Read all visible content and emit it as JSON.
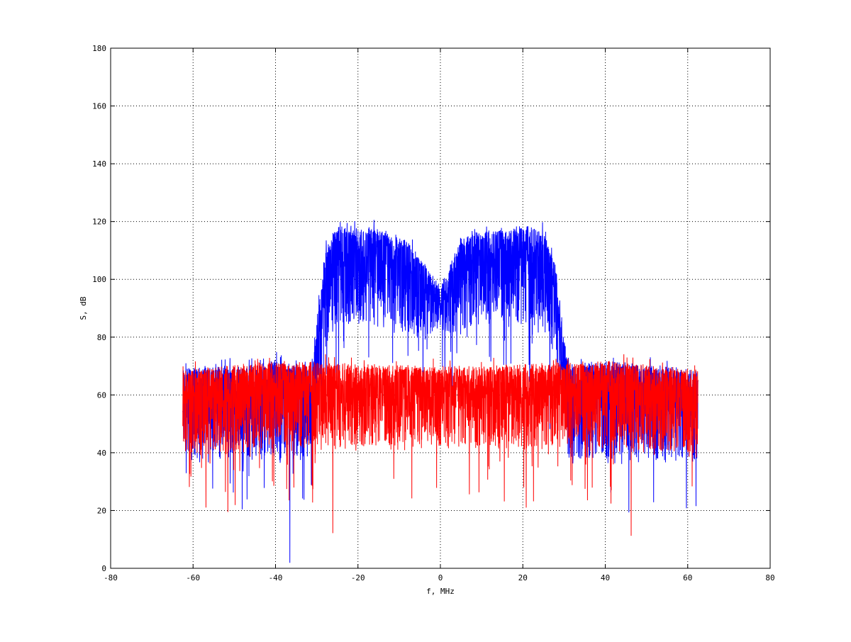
{
  "chart_data": {
    "type": "line",
    "title": "",
    "xlabel": "f, MHz",
    "ylabel": "S, dB",
    "xlim": [
      -80,
      80
    ],
    "ylim": [
      0,
      180
    ],
    "xticks": [
      "-80",
      "-60",
      "-40",
      "-20",
      "0",
      "20",
      "40",
      "60",
      "80"
    ],
    "yticks": [
      "0",
      "20",
      "40",
      "60",
      "80",
      "100",
      "120",
      "140",
      "160",
      "180"
    ],
    "grid": true,
    "frequency_range": [
      -62.5,
      62.5
    ],
    "series": [
      {
        "color": "#0000ff",
        "envelope_f": [
          -62.5,
          -45,
          -40,
          -35,
          -31,
          -30,
          -28,
          -25,
          -15,
          -8,
          -3,
          0,
          2,
          5,
          10,
          20,
          25,
          28,
          30,
          31,
          40,
          62.5
        ],
        "envelope_upper_db": [
          70,
          70,
          73,
          70,
          70,
          85,
          110,
          119,
          118,
          114,
          104,
          98,
          104,
          115,
          117,
          119,
          117,
          105,
          80,
          71,
          72,
          69
        ],
        "envelope_lower_db": [
          38,
          38,
          38,
          38,
          38,
          55,
          78,
          85,
          85,
          82,
          80,
          85,
          82,
          82,
          85,
          85,
          82,
          75,
          55,
          38,
          38,
          38
        ]
      },
      {
        "color": "#ff0000",
        "envelope_f": [
          -62.5,
          -40,
          0,
          40,
          62.5
        ],
        "envelope_upper_db": [
          69,
          72,
          70,
          72,
          69
        ],
        "envelope_lower_db": [
          40,
          42,
          43,
          42,
          40
        ]
      }
    ]
  }
}
